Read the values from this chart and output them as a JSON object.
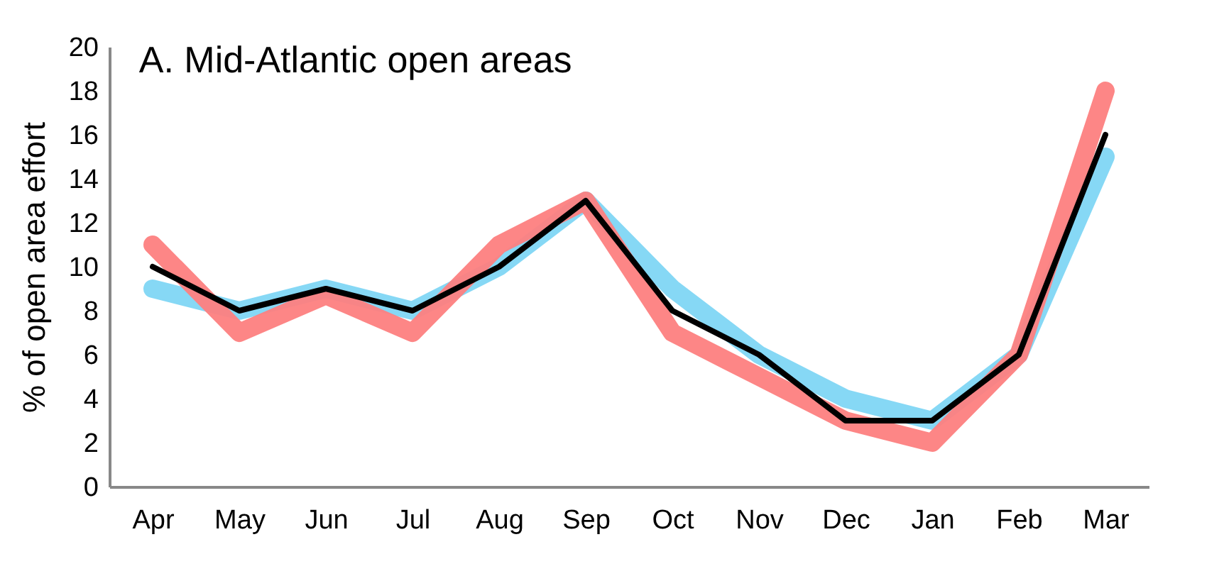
{
  "chart_data": {
    "type": "line",
    "title": "A. Mid-Atlantic open areas",
    "ylabel": "% of open area effort",
    "categories": [
      "Apr",
      "May",
      "Jun",
      "Jul",
      "Aug",
      "Sep",
      "Oct",
      "Nov",
      "Dec",
      "Jan",
      "Feb",
      "Mar"
    ],
    "series": [
      {
        "color": "#7fd6f4",
        "values": [
          9,
          8,
          9,
          8,
          10,
          13,
          9,
          6,
          4,
          3,
          6,
          15
        ]
      },
      {
        "color": "#fd7f7f",
        "values": [
          11,
          7,
          8.7,
          7,
          11,
          13,
          7,
          5,
          3,
          2,
          6,
          18
        ]
      },
      {
        "color": "#000000",
        "values": [
          10,
          8,
          9,
          8,
          10,
          13,
          8,
          6,
          3,
          3,
          6,
          16
        ]
      }
    ],
    "ylim": [
      0,
      20
    ],
    "yticks": [
      0,
      2,
      4,
      6,
      8,
      10,
      12,
      14,
      16,
      18,
      20
    ],
    "grid": false,
    "marker": "none",
    "line_style": "solid"
  }
}
